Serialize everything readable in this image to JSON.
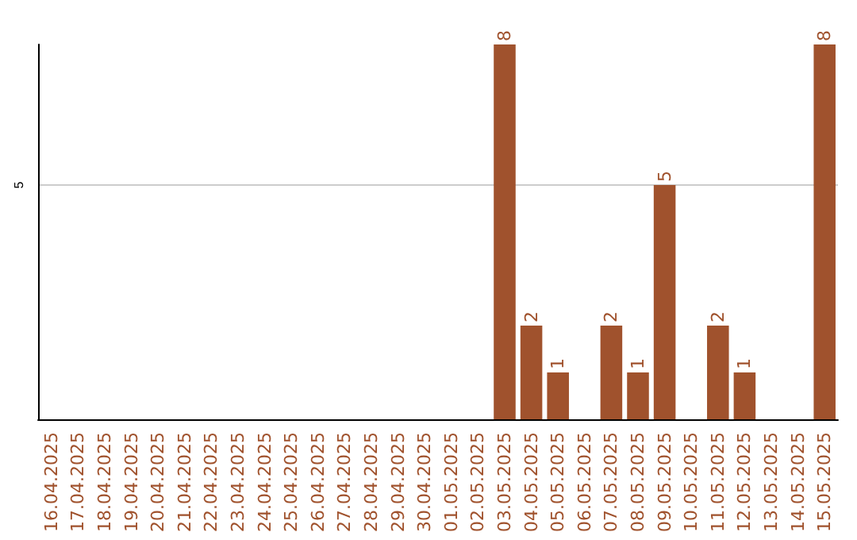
{
  "chart_data": {
    "type": "bar",
    "categories": [
      "16.04.2025",
      "17.04.2025",
      "18.04.2025",
      "19.04.2025",
      "20.04.2025",
      "21.04.2025",
      "22.04.2025",
      "23.04.2025",
      "24.04.2025",
      "25.04.2025",
      "26.04.2025",
      "27.04.2025",
      "28.04.2025",
      "29.04.2025",
      "30.04.2025",
      "01.05.2025",
      "02.05.2025",
      "03.05.2025",
      "04.05.2025",
      "05.05.2025",
      "06.05.2025",
      "07.05.2025",
      "08.05.2025",
      "09.05.2025",
      "10.05.2025",
      "11.05.2025",
      "12.05.2025",
      "13.05.2025",
      "14.05.2025",
      "15.05.2025"
    ],
    "values": [
      null,
      null,
      null,
      null,
      null,
      null,
      null,
      null,
      null,
      null,
      null,
      null,
      null,
      null,
      null,
      null,
      null,
      8,
      2,
      1,
      null,
      2,
      1,
      5,
      null,
      2,
      1,
      null,
      null,
      8
    ],
    "color": "#a0522d",
    "ylim": [
      0,
      8
    ],
    "yticks": [
      5
    ],
    "grid": "y",
    "data_labels": true
  }
}
